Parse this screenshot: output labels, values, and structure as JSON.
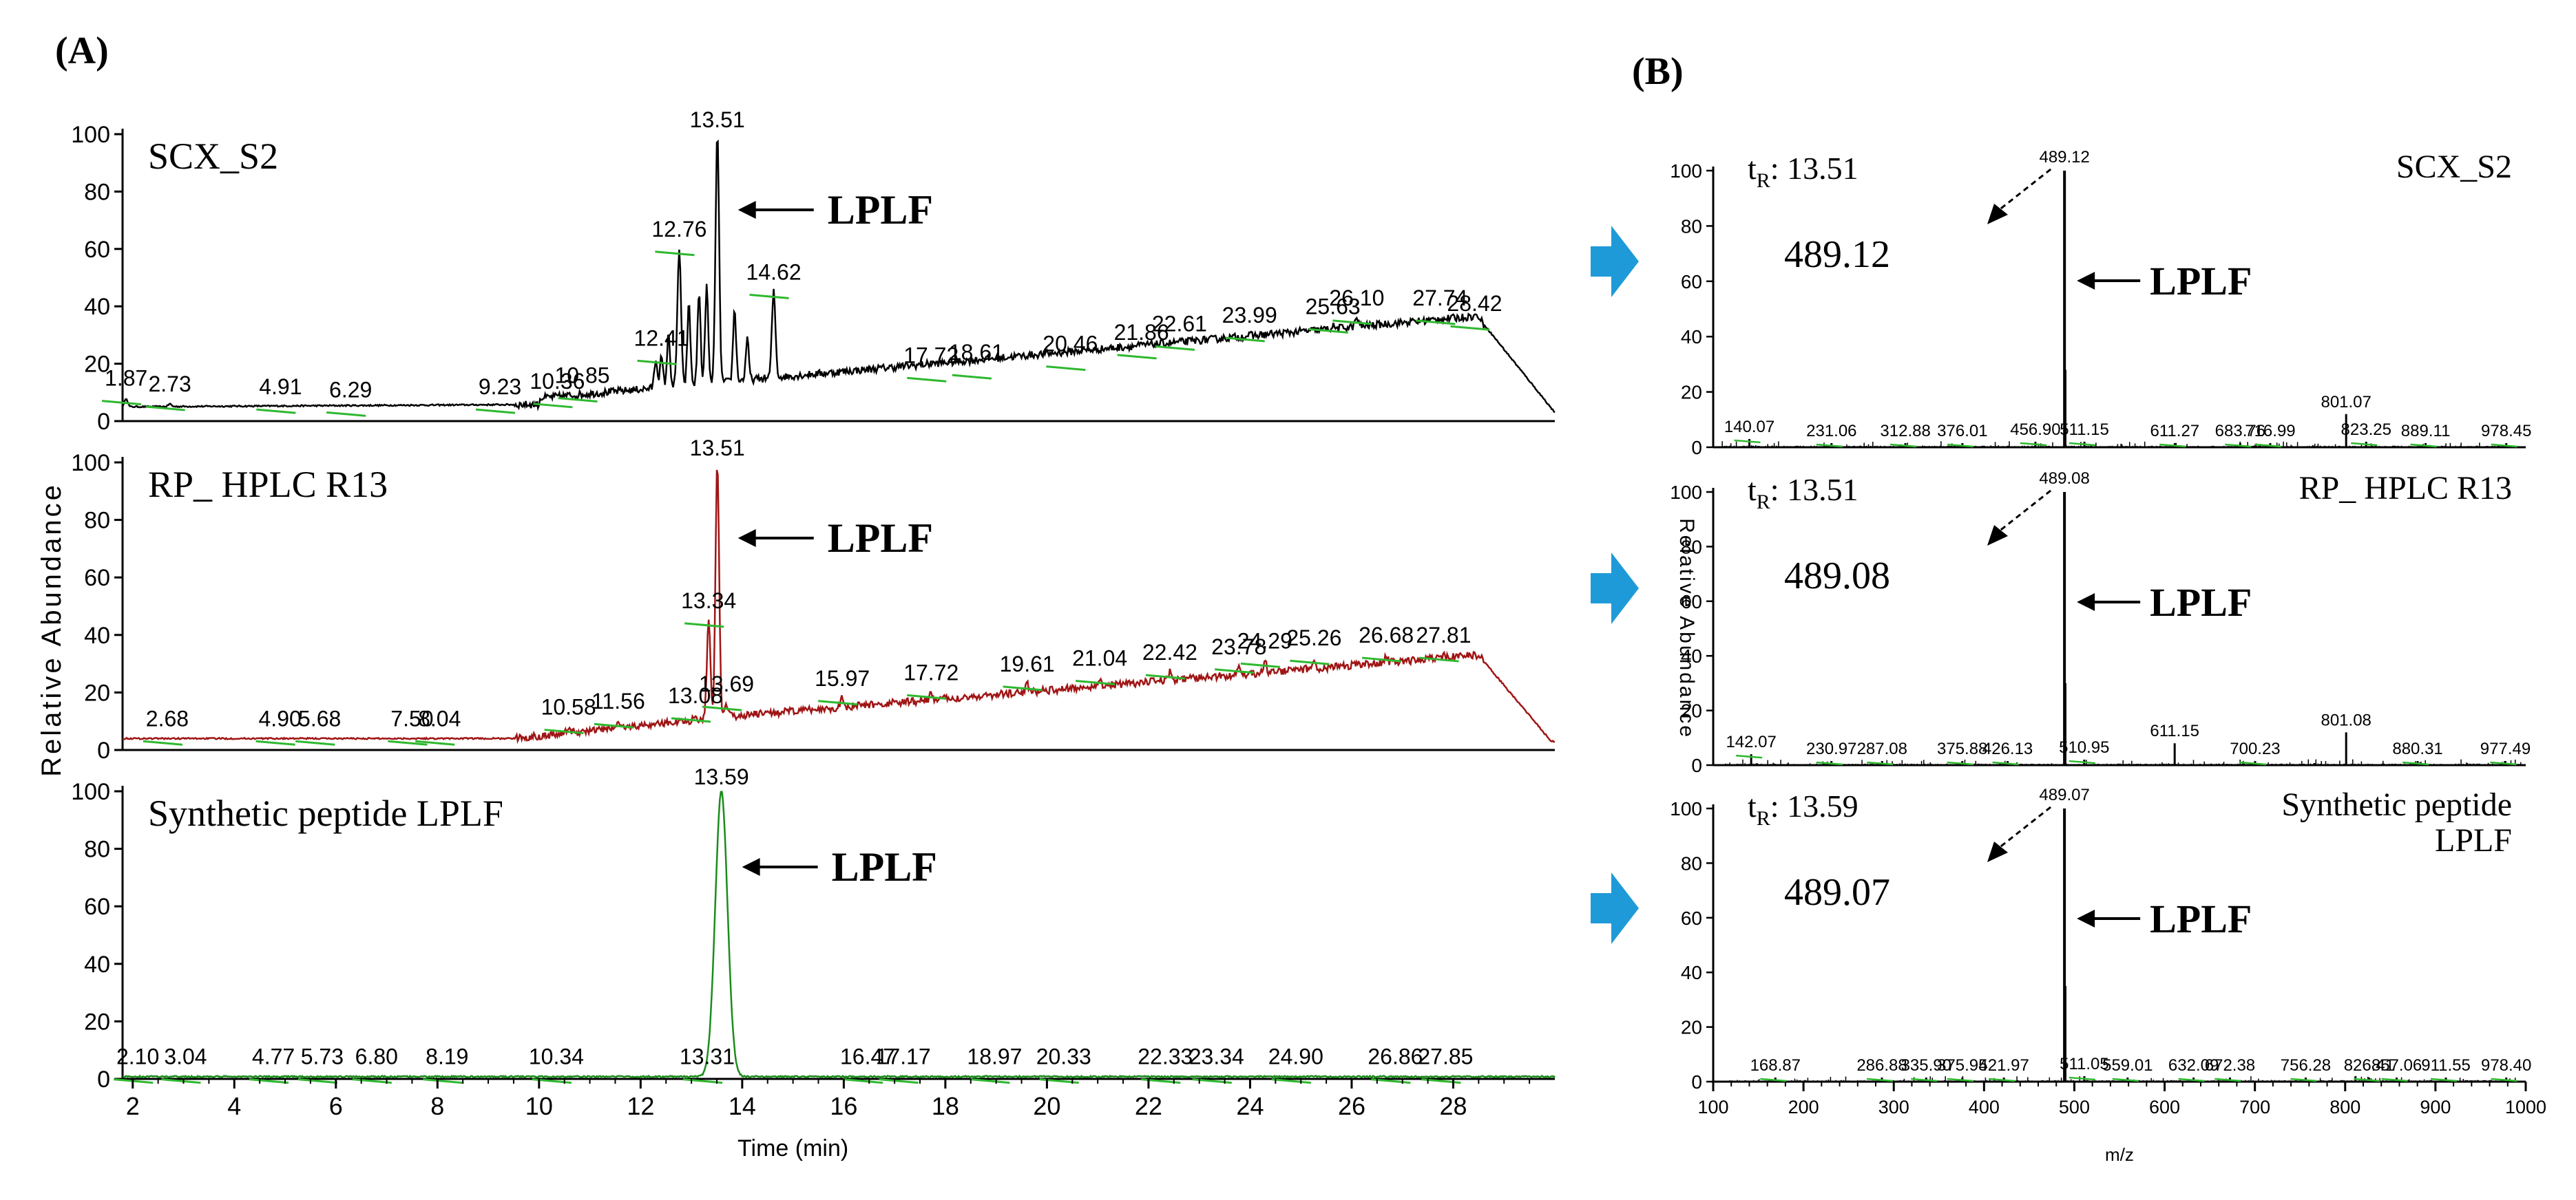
{
  "panel_a_label": "(A)",
  "panel_b_label": "(B)",
  "arrow_color": "#1f9ad8",
  "chart_data": [
    {
      "type": "line",
      "name": "SCX_S2",
      "panel": "A",
      "color": "#000000",
      "title": "SCX_S2",
      "annotation": "LPLF",
      "annotation_at": 13.51,
      "xlim": [
        1.8,
        30.0
      ],
      "ylim": [
        0,
        100
      ],
      "peaks": [
        [
          1.87,
          8
        ],
        [
          2.73,
          6
        ],
        [
          4.91,
          5
        ],
        [
          6.29,
          4
        ],
        [
          9.23,
          5
        ],
        [
          10.36,
          7
        ],
        [
          10.85,
          9
        ],
        [
          12.41,
          22
        ],
        [
          12.76,
          60
        ],
        [
          13.51,
          100
        ],
        [
          14.62,
          45
        ],
        [
          17.72,
          16
        ],
        [
          18.61,
          17
        ],
        [
          20.46,
          20
        ],
        [
          21.86,
          24
        ],
        [
          22.61,
          27
        ],
        [
          23.99,
          30
        ],
        [
          25.63,
          33
        ],
        [
          26.1,
          36
        ],
        [
          27.74,
          36
        ],
        [
          28.42,
          34
        ]
      ],
      "labels": [
        [
          1.87,
          "1.87"
        ],
        [
          2.73,
          "2.73"
        ],
        [
          4.91,
          "4.91"
        ],
        [
          6.29,
          "6.29"
        ],
        [
          9.23,
          "9.23"
        ],
        [
          10.36,
          "10.36"
        ],
        [
          10.85,
          "10.85"
        ],
        [
          12.41,
          "12.41"
        ],
        [
          12.76,
          "12.76"
        ],
        [
          13.51,
          "13.51"
        ],
        [
          14.62,
          "14.62"
        ],
        [
          17.72,
          "17.72"
        ],
        [
          18.61,
          "18.61"
        ],
        [
          20.46,
          "20.46"
        ],
        [
          21.86,
          "21.86"
        ],
        [
          22.61,
          "22.61"
        ],
        [
          23.99,
          "23.99"
        ],
        [
          25.63,
          "25.63"
        ],
        [
          26.1,
          "26.10"
        ],
        [
          27.74,
          "27.74"
        ],
        [
          28.42,
          "28.42"
        ]
      ]
    },
    {
      "type": "line",
      "name": "RP_HPLC_R13",
      "panel": "A",
      "color": "#a01515",
      "title": "RP_ HPLC R13",
      "annotation": "LPLF",
      "annotation_at": 13.51,
      "xlim": [
        1.8,
        30.0
      ],
      "ylim": [
        0,
        100
      ],
      "peaks": [
        [
          2.68,
          4
        ],
        [
          4.9,
          4
        ],
        [
          5.68,
          4
        ],
        [
          7.5,
          4
        ],
        [
          8.04,
          4
        ],
        [
          10.58,
          8
        ],
        [
          11.56,
          10
        ],
        [
          13.08,
          12
        ],
        [
          13.34,
          45
        ],
        [
          13.51,
          100
        ],
        [
          13.69,
          16
        ],
        [
          15.97,
          18
        ],
        [
          17.72,
          20
        ],
        [
          19.61,
          23
        ],
        [
          21.04,
          25
        ],
        [
          22.42,
          27
        ],
        [
          23.78,
          29
        ],
        [
          24.29,
          31
        ],
        [
          25.26,
          32
        ],
        [
          26.68,
          33
        ],
        [
          27.81,
          33
        ]
      ],
      "labels": [
        [
          2.68,
          "2.68"
        ],
        [
          4.9,
          "4.90"
        ],
        [
          5.68,
          "5.68"
        ],
        [
          7.5,
          "7.50"
        ],
        [
          8.04,
          "8.04"
        ],
        [
          10.58,
          "10.58"
        ],
        [
          11.56,
          "11.56"
        ],
        [
          13.08,
          "13.08"
        ],
        [
          13.34,
          "13.34"
        ],
        [
          13.51,
          "13.51"
        ],
        [
          13.69,
          "13.69"
        ],
        [
          15.97,
          "15.97"
        ],
        [
          17.72,
          "17.72"
        ],
        [
          19.61,
          "19.61"
        ],
        [
          21.04,
          "21.04"
        ],
        [
          22.42,
          "22.42"
        ],
        [
          23.78,
          "23.78"
        ],
        [
          24.29,
          "24.29"
        ],
        [
          25.26,
          "25.26"
        ],
        [
          26.68,
          "26.68"
        ],
        [
          27.81,
          "27.81"
        ]
      ]
    },
    {
      "type": "line",
      "name": "Synthetic_LPLF",
      "panel": "A",
      "color": "#1a8c1a",
      "title": "Synthetic peptide LPLF",
      "annotation": "LPLF",
      "annotation_at": 13.59,
      "xlim": [
        1.8,
        30.0
      ],
      "ylim": [
        0,
        100
      ],
      "peaks": [
        [
          13.59,
          100
        ]
      ],
      "labels": [
        [
          2.1,
          "2.10"
        ],
        [
          3.04,
          "3.04"
        ],
        [
          4.77,
          "4.77"
        ],
        [
          5.73,
          "5.73"
        ],
        [
          6.8,
          "6.80"
        ],
        [
          8.19,
          "8.19"
        ],
        [
          10.34,
          "10.34"
        ],
        [
          13.31,
          "13.31"
        ],
        [
          13.59,
          "13.59"
        ],
        [
          16.47,
          "16.47"
        ],
        [
          17.17,
          "17.17"
        ],
        [
          18.97,
          "18.97"
        ],
        [
          20.33,
          "20.33"
        ],
        [
          22.33,
          "22.33"
        ],
        [
          23.34,
          "23.34"
        ],
        [
          24.9,
          "24.90"
        ],
        [
          26.86,
          "26.86"
        ],
        [
          27.85,
          "27.85"
        ]
      ],
      "x_ticks": [
        2,
        4,
        6,
        8,
        10,
        12,
        14,
        16,
        18,
        20,
        22,
        24,
        26,
        28
      ],
      "x_tick_labels": [
        "2",
        "4",
        "6",
        "8",
        "10",
        "12",
        "14",
        "16",
        "18",
        "20",
        "22",
        "24",
        "26",
        "28"
      ],
      "xlabel": "Time (min)"
    },
    {
      "type": "bar",
      "name": "MS_SCX_S2",
      "panel": "B",
      "title": "SCX_S2",
      "tr_label": "t",
      "tr_sub": "R",
      "tr_value": ": 13.51",
      "precursor_label": "489.12",
      "annotation": "LPLF",
      "xlim": [
        100,
        1000
      ],
      "ylim": [
        0,
        100
      ],
      "peaks": [
        [
          140.07,
          3
        ],
        [
          231.06,
          1.5
        ],
        [
          312.88,
          1.5
        ],
        [
          376.01,
          1.5
        ],
        [
          456.9,
          2
        ],
        [
          489.12,
          100
        ],
        [
          490.1,
          28
        ],
        [
          511.15,
          2
        ],
        [
          611.27,
          1.5
        ],
        [
          683.76,
          1.5
        ],
        [
          716.99,
          1.5
        ],
        [
          801.07,
          12
        ],
        [
          823.25,
          2
        ],
        [
          889.11,
          1.5
        ],
        [
          978.45,
          1.5
        ]
      ],
      "labels": [
        [
          140.07,
          "140.07"
        ],
        [
          231.06,
          "231.06"
        ],
        [
          312.88,
          "312.88"
        ],
        [
          376.01,
          "376.01"
        ],
        [
          456.9,
          "456.90"
        ],
        [
          489.12,
          "489.12"
        ],
        [
          511.15,
          "511.15"
        ],
        [
          611.27,
          "611.27"
        ],
        [
          683.76,
          "683.76"
        ],
        [
          716.99,
          "716.99"
        ],
        [
          801.07,
          "801.07"
        ],
        [
          823.25,
          "823.25"
        ],
        [
          889.11,
          "889.11"
        ],
        [
          978.45,
          "978.45"
        ]
      ]
    },
    {
      "type": "bar",
      "name": "MS_RP_HPLC_R13",
      "panel": "B",
      "title": "RP_ HPLC R13",
      "tr_label": "t",
      "tr_sub": "R",
      "tr_value": ": 13.51",
      "precursor_label": "489.08",
      "annotation": "LPLF",
      "ylabel": "Relative Abundance",
      "xlim": [
        100,
        1000
      ],
      "ylim": [
        0,
        100
      ],
      "peaks": [
        [
          142.07,
          4
        ],
        [
          230.97,
          1.5
        ],
        [
          287.08,
          1.5
        ],
        [
          375.88,
          1.5
        ],
        [
          426.13,
          1.5
        ],
        [
          489.08,
          100
        ],
        [
          490.1,
          30
        ],
        [
          510.95,
          2
        ],
        [
          611.15,
          8
        ],
        [
          700.23,
          1.5
        ],
        [
          801.08,
          12
        ],
        [
          880.31,
          1.5
        ],
        [
          977.49,
          1.5
        ]
      ],
      "labels": [
        [
          142.07,
          "142.07"
        ],
        [
          230.97,
          "230.97"
        ],
        [
          287.08,
          "287.08"
        ],
        [
          375.88,
          "375.88"
        ],
        [
          426.13,
          "426.13"
        ],
        [
          489.08,
          "489.08"
        ],
        [
          510.95,
          "510.95"
        ],
        [
          611.15,
          "611.15"
        ],
        [
          700.23,
          "700.23"
        ],
        [
          801.08,
          "801.08"
        ],
        [
          880.31,
          "880.31"
        ],
        [
          977.49,
          "977.49"
        ]
      ]
    },
    {
      "type": "bar",
      "name": "MS_Synthetic_LPLF",
      "panel": "B",
      "title": "Synthetic peptide",
      "title2": "LPLF",
      "tr_label": "t",
      "tr_sub": "R",
      "tr_value": ": 13.59",
      "precursor_label": "489.07",
      "annotation": "LPLF",
      "xlim": [
        100,
        1000
      ],
      "ylim": [
        0,
        100
      ],
      "peaks": [
        [
          168.87,
          1.5
        ],
        [
          286.88,
          1.5
        ],
        [
          335.9,
          1.5
        ],
        [
          375.95,
          1.5
        ],
        [
          421.97,
          1.5
        ],
        [
          489.07,
          100
        ],
        [
          490.1,
          35
        ],
        [
          511.05,
          2
        ],
        [
          559.01,
          1.5
        ],
        [
          632.09,
          1.5
        ],
        [
          672.38,
          1.5
        ],
        [
          756.28,
          1.5
        ],
        [
          826.41,
          1.5
        ],
        [
          857.06,
          1.5
        ],
        [
          911.55,
          1.5
        ],
        [
          978.4,
          1.5
        ]
      ],
      "labels": [
        [
          168.87,
          "168.87"
        ],
        [
          286.88,
          "286.88"
        ],
        [
          335.9,
          "335.90"
        ],
        [
          375.95,
          "375.95"
        ],
        [
          421.97,
          "421.97"
        ],
        [
          489.07,
          "489.07"
        ],
        [
          511.05,
          "511.05"
        ],
        [
          559.01,
          "559.01"
        ],
        [
          632.09,
          "632.09"
        ],
        [
          672.38,
          "672.38"
        ],
        [
          756.28,
          "756.28"
        ],
        [
          826.41,
          "826.41"
        ],
        [
          857.06,
          "857.06"
        ],
        [
          911.55,
          "911.55"
        ],
        [
          978.4,
          "978.40"
        ]
      ],
      "x_ticks": [
        100,
        200,
        300,
        400,
        500,
        600,
        700,
        800,
        900,
        1000
      ],
      "x_tick_labels": [
        "100",
        "200",
        "300",
        "400",
        "500",
        "600",
        "700",
        "800",
        "900",
        "1000"
      ],
      "xlabel": "m/z"
    }
  ],
  "shared": {
    "y_ticks": [
      0,
      20,
      40,
      60,
      80,
      100
    ],
    "y_tick_labels": [
      "0",
      "20",
      "40",
      "60",
      "80",
      "100"
    ],
    "lc_ylabel": "Relative Abundance"
  }
}
